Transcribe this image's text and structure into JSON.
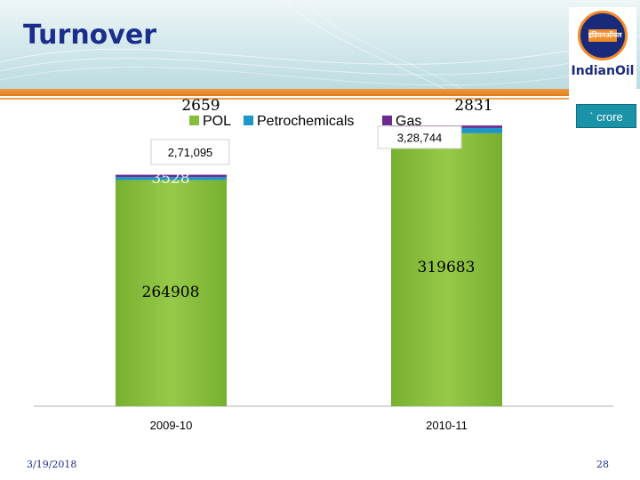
{
  "page": {
    "title": "Turnover",
    "logo_text": "IndianOil",
    "logo_hindi": "इंडियनऑयल",
    "unit_label": "` crore",
    "footer_date": "3/19/2018",
    "footer_page": "28"
  },
  "chart_data": {
    "type": "bar",
    "stacked": true,
    "categories": [
      "2009-10",
      "2010-11"
    ],
    "series": [
      {
        "name": "POL",
        "color": "#86bd3c",
        "values": [
          264908,
          319683
        ],
        "labels": [
          "264908",
          "319683"
        ]
      },
      {
        "name": "Petrochemicals",
        "color": "#1f95c9",
        "values": [
          3528,
          6230
        ],
        "labels": [
          "3528",
          ""
        ]
      },
      {
        "name": "Gas",
        "color": "#6a2c91",
        "values": [
          2659,
          2831
        ],
        "labels": [
          "2659",
          "2831"
        ]
      }
    ],
    "totals": [
      "2,71,095",
      "3,28,744"
    ],
    "legend_position": "top",
    "ylim": [
      0,
      330000
    ],
    "grid": false
  }
}
